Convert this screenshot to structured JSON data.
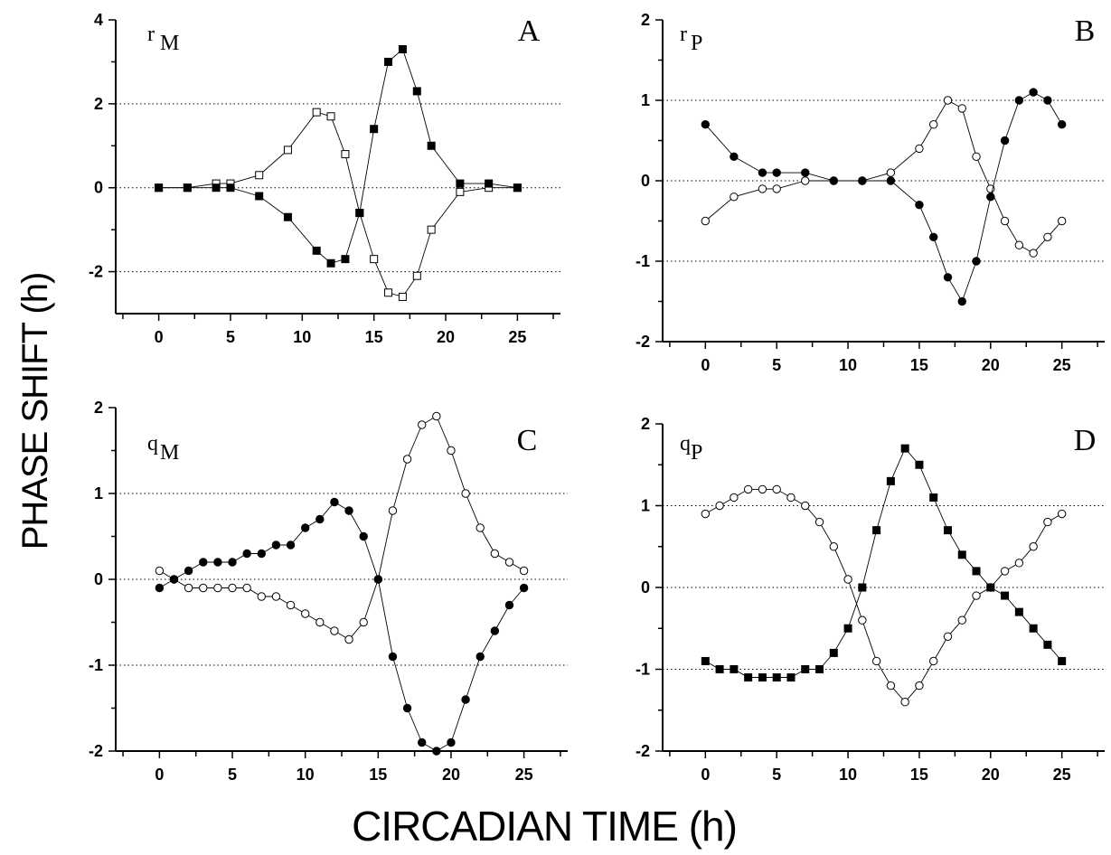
{
  "figure": {
    "ylabel": "PHASE SHIFT (h)",
    "xlabel": "CIRCADIAN TIME (h)"
  },
  "chart_data": [
    {
      "type": "line",
      "panel": "A",
      "param_symbol": "r",
      "param_sub": "M",
      "xlim": [
        -3,
        28
      ],
      "ylim": [
        -3,
        4
      ],
      "xticks": [
        0,
        5,
        10,
        15,
        20,
        25
      ],
      "yticks": [
        4,
        2,
        0,
        -2
      ],
      "grid_y": [
        2,
        0,
        -2
      ],
      "series": [
        {
          "marker": "square-open",
          "x": [
            0,
            2,
            4,
            5,
            7,
            9,
            11,
            12,
            13,
            14,
            15,
            16,
            17,
            18,
            19,
            21,
            23,
            25
          ],
          "y": [
            0,
            0,
            0.1,
            0.1,
            0.3,
            0.9,
            1.8,
            1.7,
            0.8,
            -0.6,
            -1.7,
            -2.5,
            -2.6,
            -2.1,
            -1.0,
            -0.1,
            0,
            0
          ]
        },
        {
          "marker": "square-filled",
          "x": [
            0,
            2,
            4,
            5,
            7,
            9,
            11,
            12,
            13,
            14,
            15,
            16,
            17,
            18,
            19,
            21,
            23,
            25
          ],
          "y": [
            0,
            0,
            0,
            0,
            -0.2,
            -0.7,
            -1.5,
            -1.8,
            -1.7,
            -0.6,
            1.4,
            3.0,
            3.3,
            2.3,
            1.0,
            0.1,
            0.1,
            0
          ]
        }
      ]
    },
    {
      "type": "line",
      "panel": "B",
      "param_symbol": "r",
      "param_sub": "P",
      "xlim": [
        -3,
        28
      ],
      "ylim": [
        -2,
        2
      ],
      "xticks": [
        0,
        5,
        10,
        15,
        20,
        25
      ],
      "yticks": [
        2,
        1,
        0,
        -1,
        -2
      ],
      "grid_y": [
        1,
        0,
        -1
      ],
      "series": [
        {
          "marker": "circle-open",
          "x": [
            0,
            2,
            4,
            5,
            7,
            9,
            11,
            13,
            15,
            16,
            17,
            18,
            19,
            20,
            21,
            22,
            23,
            24,
            25
          ],
          "y": [
            -0.5,
            -0.2,
            -0.1,
            -0.1,
            0,
            0,
            0,
            0.1,
            0.4,
            0.7,
            1.0,
            0.9,
            0.3,
            -0.1,
            -0.5,
            -0.8,
            -0.9,
            -0.7,
            -0.5
          ]
        },
        {
          "marker": "circle-filled",
          "x": [
            0,
            2,
            4,
            5,
            7,
            9,
            11,
            13,
            15,
            16,
            17,
            18,
            19,
            20,
            21,
            22,
            23,
            24,
            25
          ],
          "y": [
            0.7,
            0.3,
            0.1,
            0.1,
            0.1,
            0,
            0,
            0,
            -0.3,
            -0.7,
            -1.2,
            -1.5,
            -1.0,
            -0.2,
            0.5,
            1.0,
            1.1,
            1.0,
            0.7
          ]
        }
      ]
    },
    {
      "type": "line",
      "panel": "C",
      "param_symbol": "q",
      "param_sub": "M",
      "xlim": [
        -3,
        28
      ],
      "ylim": [
        -2,
        2
      ],
      "xticks": [
        0,
        5,
        10,
        15,
        20,
        25
      ],
      "yticks": [
        2,
        1,
        0,
        -1,
        -2
      ],
      "grid_y": [
        1,
        0,
        -1
      ],
      "series": [
        {
          "marker": "circle-open",
          "x": [
            0,
            1,
            2,
            3,
            4,
            5,
            6,
            7,
            8,
            9,
            10,
            11,
            12,
            13,
            14,
            15,
            16,
            17,
            18,
            19,
            20,
            21,
            22,
            23,
            24,
            25
          ],
          "y": [
            0.1,
            0,
            -0.1,
            -0.1,
            -0.1,
            -0.1,
            -0.1,
            -0.2,
            -0.2,
            -0.3,
            -0.4,
            -0.5,
            -0.6,
            -0.7,
            -0.5,
            0,
            0.8,
            1.4,
            1.8,
            1.9,
            1.5,
            1.0,
            0.6,
            0.3,
            0.2,
            0.1
          ]
        },
        {
          "marker": "circle-filled",
          "x": [
            0,
            1,
            2,
            3,
            4,
            5,
            6,
            7,
            8,
            9,
            10,
            11,
            12,
            13,
            14,
            15,
            16,
            17,
            18,
            19,
            20,
            21,
            22,
            23,
            24,
            25
          ],
          "y": [
            -0.1,
            0,
            0.1,
            0.2,
            0.2,
            0.2,
            0.3,
            0.3,
            0.4,
            0.4,
            0.6,
            0.7,
            0.9,
            0.8,
            0.5,
            0,
            -0.9,
            -1.5,
            -1.9,
            -2.0,
            -1.9,
            -1.4,
            -0.9,
            -0.6,
            -0.3,
            -0.1
          ]
        }
      ]
    },
    {
      "type": "line",
      "panel": "D",
      "param_symbol": "q",
      "param_sub": "P",
      "xlim": [
        -3,
        28
      ],
      "ylim": [
        -2,
        2
      ],
      "xticks": [
        0,
        5,
        10,
        15,
        20,
        25
      ],
      "yticks": [
        2,
        1,
        0,
        -1,
        -2
      ],
      "grid_y": [
        1,
        0,
        -1
      ],
      "series": [
        {
          "marker": "circle-open",
          "x": [
            0,
            1,
            2,
            3,
            4,
            5,
            6,
            7,
            8,
            9,
            10,
            11,
            12,
            13,
            14,
            15,
            16,
            17,
            18,
            19,
            20,
            21,
            22,
            23,
            24,
            25
          ],
          "y": [
            0.9,
            1.0,
            1.1,
            1.2,
            1.2,
            1.2,
            1.1,
            1.0,
            0.8,
            0.5,
            0.1,
            -0.4,
            -0.9,
            -1.2,
            -1.4,
            -1.2,
            -0.9,
            -0.6,
            -0.4,
            -0.1,
            0,
            0.2,
            0.3,
            0.5,
            0.8,
            0.9
          ]
        },
        {
          "marker": "square-filled",
          "x": [
            0,
            1,
            2,
            3,
            4,
            5,
            6,
            7,
            8,
            9,
            10,
            11,
            12,
            13,
            14,
            15,
            16,
            17,
            18,
            19,
            20,
            21,
            22,
            23,
            24,
            25
          ],
          "y": [
            -0.9,
            -1.0,
            -1.0,
            -1.1,
            -1.1,
            -1.1,
            -1.1,
            -1.0,
            -1.0,
            -0.8,
            -0.5,
            0,
            0.7,
            1.3,
            1.7,
            1.5,
            1.1,
            0.7,
            0.4,
            0.2,
            0,
            -0.1,
            -0.3,
            -0.5,
            -0.7,
            -0.9
          ]
        }
      ]
    }
  ]
}
